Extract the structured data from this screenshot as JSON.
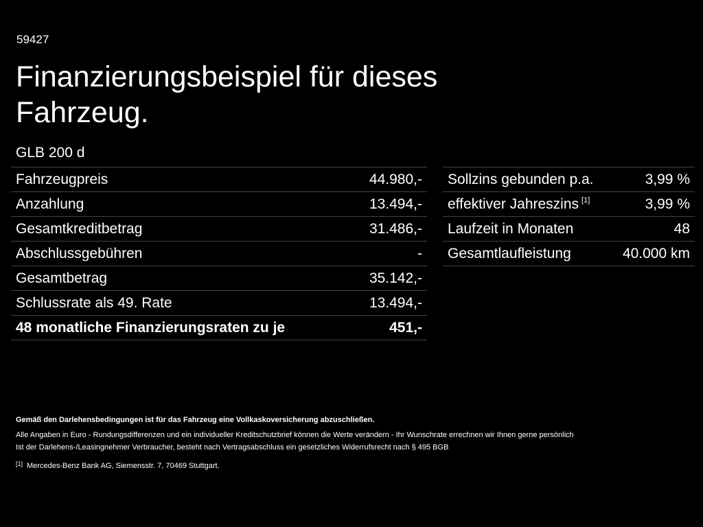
{
  "header": {
    "id": "59427",
    "title": "Finanzierungsbeispiel für dieses Fahrzeug.",
    "model": "GLB 200 d"
  },
  "left_table": {
    "rows": [
      [
        "Fahrzeugpreis",
        "44.980,-"
      ],
      [
        "Anzahlung",
        "13.494,-"
      ],
      [
        "Gesamtkreditbetrag",
        "31.486,-"
      ],
      [
        "Abschlussgebühren",
        "-"
      ],
      [
        "Gesamtbetrag",
        "35.142,-"
      ],
      [
        "Schlussrate als 49. Rate",
        "13.494,-"
      ],
      [
        "48 monatliche Finanzierungsraten zu je",
        "451,-"
      ]
    ]
  },
  "right_table": {
    "rows": [
      {
        "label": "Sollzins gebunden p.a.",
        "value": "3,99 %"
      },
      {
        "label": "effektiver Jahreszins",
        "ref": "[1]",
        "value": "3,99 %"
      },
      {
        "label": "Laufzeit in Monaten",
        "value": "48"
      },
      {
        "label": "Gesamtlaufleistung",
        "value": "40.000 km"
      }
    ]
  },
  "notes": {
    "bold": "Gemäß den Darlehensbedingungen ist für das Fahrzeug eine Vollkaskoversicherung abzuschließen.",
    "lines": [
      "Alle Angaben in Euro - Rundungsdifferenzen und ein individueller Kreditschutzbrief können die Werte verändern - Ihr Wunschrate errechnen wir Ihnen gerne persönlich",
      "Ist der Darlehens-/Leasingnehmer Verbraucher, besteht nach Vertragsabschluss ein gesetzliches Widerrufsrecht nach § 495 BGB"
    ],
    "footnote": {
      "ref": "[1]",
      "text": "Mercedes-Benz Bank AG, Siemensstr. 7, 70469 Stuttgart."
    }
  }
}
